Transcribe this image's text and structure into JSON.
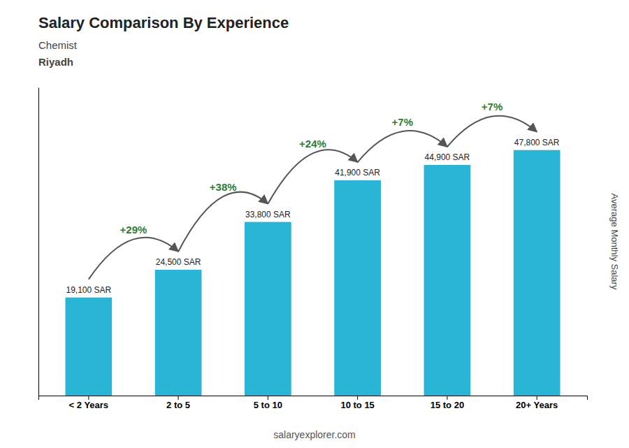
{
  "chart_data": {
    "type": "bar",
    "title": "Salary Comparison By Experience",
    "subtitle": [
      "Chemist",
      "Riyadh"
    ],
    "y_label": "Average Monthly Salary",
    "categories": [
      "< 2 Years",
      "2 to 5",
      "5 to 10",
      "10 to 15",
      "15 to 20",
      "20+ Years"
    ],
    "values": [
      19100,
      24500,
      33800,
      41900,
      44900,
      47800
    ],
    "value_labels": [
      "19,100 SAR",
      "24,500 SAR",
      "33,800 SAR",
      "41,900 SAR",
      "44,900 SAR",
      "47,800 SAR"
    ],
    "data_labels": true,
    "annotations": [
      "+29%",
      "+38%",
      "+24%",
      "+7%",
      "+7%"
    ],
    "source": "salaryexplorer.com",
    "color": "#29b6d6",
    "ylim": [
      0,
      60000
    ],
    "grid": false,
    "tick_labels": "x"
  }
}
